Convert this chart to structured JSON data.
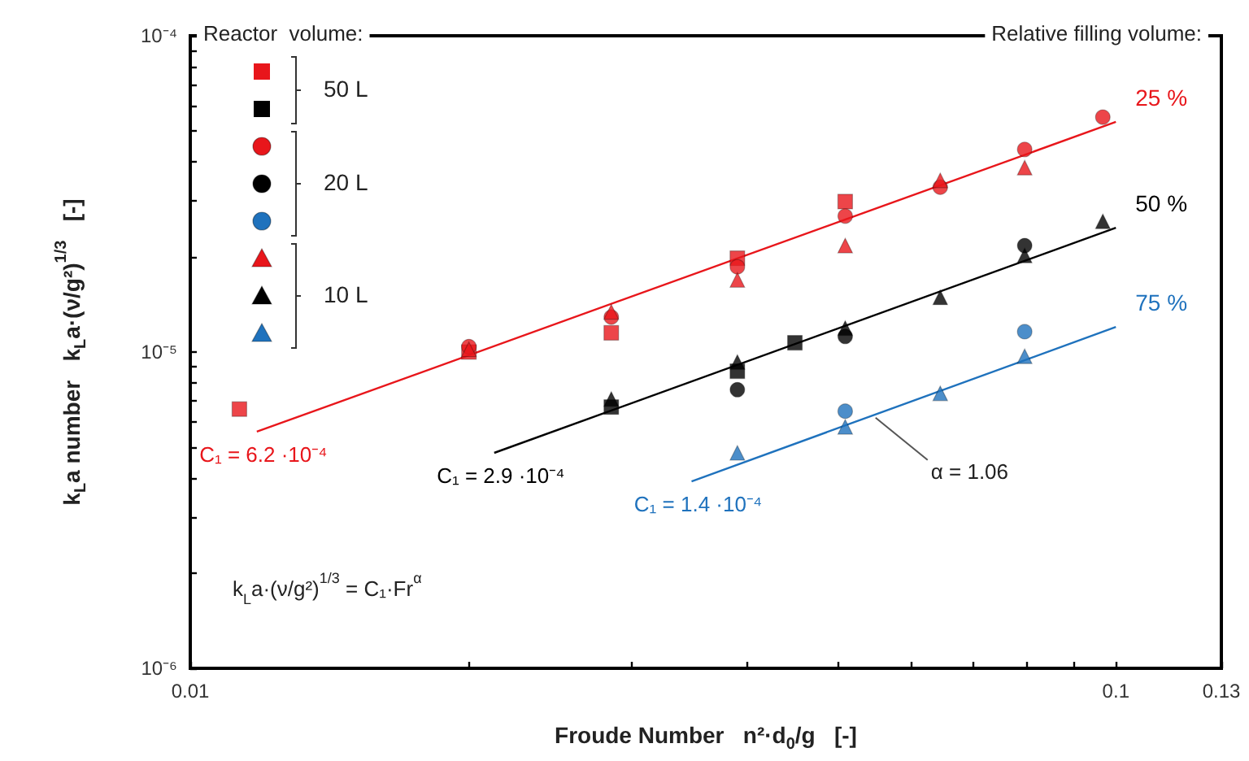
{
  "chart_data": {
    "type": "scatter",
    "xlabel": "Froude Number   n²·d$_{0}$/g   [-]",
    "ylabel": "k$_{L}$a number   k$_{L}$a·(ν/g²)$^{1/3}$   [-]",
    "log": "xy",
    "xlim": [
      0.01,
      0.13
    ],
    "ylim": [
      1e-06,
      0.0001
    ],
    "xticks": [
      0.01,
      {
        "value": 0.02,
        "label": null
      },
      {
        "value": 0.03,
        "label": null
      },
      {
        "value": 0.04,
        "label": null
      },
      {
        "value": 0.05,
        "label": null
      },
      {
        "value": 0.06,
        "label": null
      },
      {
        "value": 0.07,
        "label": null
      },
      {
        "value": 0.08,
        "label": null
      },
      {
        "value": 0.09,
        "label": null
      },
      0.1,
      0.13
    ],
    "yticks": [
      {
        "value": 1e-06,
        "label": "10⁻⁶"
      },
      {
        "value": 2e-06,
        "label": null
      },
      {
        "value": 3e-06,
        "label": null
      },
      {
        "value": 4e-06,
        "label": null
      },
      {
        "value": 5e-06,
        "label": null
      },
      {
        "value": 6e-06,
        "label": null
      },
      {
        "value": 7e-06,
        "label": null
      },
      {
        "value": 8e-06,
        "label": null
      },
      {
        "value": 9e-06,
        "label": null
      },
      {
        "value": 1e-05,
        "label": "10⁻⁵"
      },
      {
        "value": 2e-05,
        "label": null
      },
      {
        "value": 3e-05,
        "label": null
      },
      {
        "value": 4e-05,
        "label": null
      },
      {
        "value": 5e-05,
        "label": null
      },
      {
        "value": 6e-05,
        "label": null
      },
      {
        "value": 7e-05,
        "label": null
      },
      {
        "value": 8e-05,
        "label": null
      },
      {
        "value": 9e-05,
        "label": null
      },
      {
        "value": 0.0001,
        "label": "10⁻⁴"
      }
    ],
    "grid": false,
    "legend": "right",
    "legend_title": "Reactor  volume:",
    "series": [
      {
        "color": "#e8161b",
        "marker": "square",
        "x": [
          0.0113,
          0.02,
          0.0285,
          0.039,
          0.051
        ],
        "values": [
          6.6e-06,
          1e-05,
          1.15e-05,
          1.98e-05,
          2.99e-05
        ]
      },
      {
        "color": "#000000",
        "marker": "square",
        "x": [
          0.0285,
          0.039,
          0.045
        ],
        "values": [
          6.7e-06,
          8.7e-06,
          1.07e-05
        ]
      },
      {
        "color": "#e8161b",
        "marker": "circle",
        "x": [
          0.02,
          0.0285,
          0.039,
          0.051,
          0.0646,
          0.0797,
          0.0968
        ],
        "values": [
          1.04e-05,
          1.29e-05,
          1.86e-05,
          2.69e-05,
          3.32e-05,
          4.37e-05,
          5.53e-05
        ]
      },
      {
        "color": "#000000",
        "marker": "circle",
        "x": [
          0.039,
          0.051,
          0.0797
        ],
        "values": [
          7.6e-06,
          1.12e-05,
          2.17e-05
        ]
      },
      {
        "color": "#1f72bd",
        "marker": "circle",
        "x": [
          0.051,
          0.0797
        ],
        "values": [
          6.5e-06,
          1.16e-05
        ]
      },
      {
        "color": "#e8161b",
        "marker": "triangle",
        "x": [
          0.02,
          0.0285,
          0.039,
          0.051,
          0.0646,
          0.0797
        ],
        "values": [
          1.02e-05,
          1.34e-05,
          1.69e-05,
          2.17e-05,
          3.49e-05,
          3.83e-05
        ]
      },
      {
        "color": "#000000",
        "marker": "triangle",
        "x": [
          0.0285,
          0.039,
          0.051,
          0.0646,
          0.0797,
          0.0968
        ],
        "values": [
          7.1e-06,
          9.3e-06,
          1.19e-05,
          1.49e-05,
          2.02e-05,
          2.59e-05
        ]
      },
      {
        "color": "#1f72bd",
        "marker": "triangle",
        "x": [
          0.039,
          0.051,
          0.0646,
          0.0797
        ],
        "values": [
          4.8e-06,
          5.8e-06,
          7.4e-06,
          9.7e-06
        ]
      },
      {
        "type": "line",
        "name": "25 %",
        "color": "#e8161b",
        "x": [
          0.0118,
          0.1
        ],
        "values": [
          5.6e-06,
          5.34e-05
        ]
      },
      {
        "type": "line",
        "name": "50 %",
        "color": "#000000",
        "x": [
          0.0213,
          0.1
        ],
        "values": [
          4.8e-06,
          2.47e-05
        ]
      },
      {
        "type": "line",
        "name": "75 %",
        "color": "#1f72bd",
        "x": [
          0.0348,
          0.1
        ],
        "values": [
          3.9e-06,
          1.2e-05
        ]
      }
    ],
    "annotations": [
      "Relative filling volume:",
      "k$_{L}$a·(ν/g²)$^{1/3}$ = C₁·Fr$^{α}$",
      "50 L",
      "20 L",
      "10 L",
      {
        "text": "C₁ = 6.2 ·10⁻⁴",
        "x": 0.0118,
        "y": 5.6e-06
      },
      {
        "text": "C₁ = 2.9 ·10⁻⁴",
        "x": 0.0213,
        "y": 4.8e-06
      },
      {
        "text": "C₁ = 1.4 ·10⁻⁴",
        "x": 0.0348,
        "y": 3.9e-06
      },
      {
        "text": "α = 1.06",
        "x": 0.055,
        "y": 6.2e-06
      }
    ]
  }
}
